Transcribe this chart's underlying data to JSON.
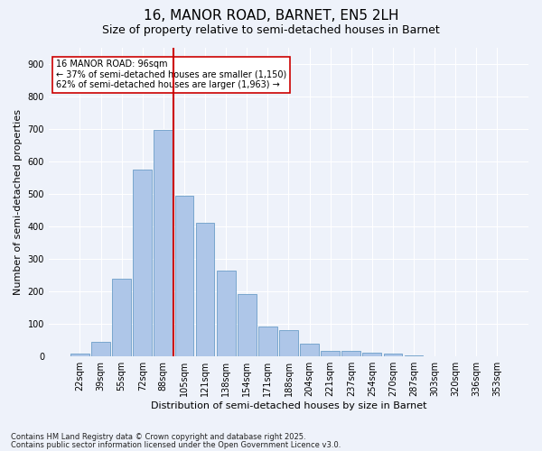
{
  "title1": "16, MANOR ROAD, BARNET, EN5 2LH",
  "title2": "Size of property relative to semi-detached houses in Barnet",
  "xlabel": "Distribution of semi-detached houses by size in Barnet",
  "ylabel": "Number of semi-detached properties",
  "categories": [
    "22sqm",
    "39sqm",
    "55sqm",
    "72sqm",
    "88sqm",
    "105sqm",
    "121sqm",
    "138sqm",
    "154sqm",
    "171sqm",
    "188sqm",
    "204sqm",
    "221sqm",
    "237sqm",
    "254sqm",
    "270sqm",
    "287sqm",
    "303sqm",
    "320sqm",
    "336sqm",
    "353sqm"
  ],
  "values": [
    8,
    46,
    238,
    574,
    697,
    493,
    411,
    263,
    193,
    92,
    82,
    40,
    16,
    18,
    11,
    10,
    2,
    0,
    0,
    0,
    0
  ],
  "bar_color": "#aec6e8",
  "bar_edge_color": "#6b9ec8",
  "vline_color": "#cc0000",
  "vline_x": 4.5,
  "annotation_text": "16 MANOR ROAD: 96sqm\n← 37% of semi-detached houses are smaller (1,150)\n62% of semi-detached houses are larger (1,963) →",
  "annotation_box_color": "#ffffff",
  "annotation_box_edge": "#cc0000",
  "ylim": [
    0,
    950
  ],
  "yticks": [
    0,
    100,
    200,
    300,
    400,
    500,
    600,
    700,
    800,
    900
  ],
  "footer1": "Contains HM Land Registry data © Crown copyright and database right 2025.",
  "footer2": "Contains public sector information licensed under the Open Government Licence v3.0.",
  "bg_color": "#eef2fa",
  "plot_bg_color": "#eef2fa",
  "grid_color": "#ffffff",
  "title1_fontsize": 11,
  "title2_fontsize": 9,
  "tick_fontsize": 7,
  "ylabel_fontsize": 8,
  "xlabel_fontsize": 8,
  "annotation_fontsize": 7,
  "footer_fontsize": 6
}
